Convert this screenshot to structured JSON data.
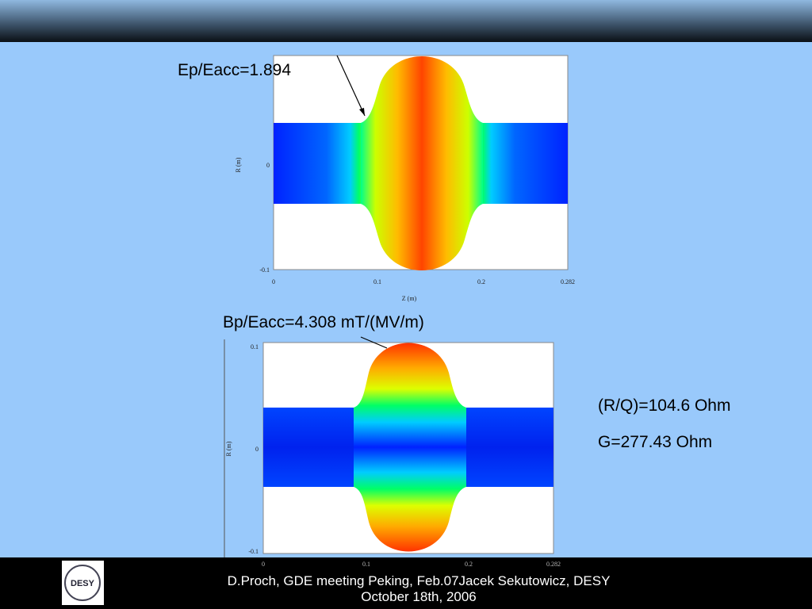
{
  "slide": {
    "annotations": {
      "ep": "Ep/Eacc=1.894",
      "bp": "Bp/Eacc=4.308 mT/(MV/m)",
      "rq": "(R/Q)=104.6 Ohm",
      "g": "G=277.43 Ohm"
    },
    "plots": [
      {
        "y_label": "R (m)",
        "x_label": "Z (m)",
        "y_ticks": [
          "0",
          "-0.1"
        ],
        "x_ticks": [
          "0",
          "0.1",
          "0.2",
          "0.282"
        ]
      },
      {
        "y_label": "R (m)",
        "y_ticks": [
          "0.1",
          "0",
          "-0.1"
        ],
        "x_ticks": [
          "0",
          "0.1",
          "0.2",
          "0.282"
        ]
      }
    ],
    "footer": {
      "line1": "D.Proch, GDE meeting Peking, Feb.07Jacek Sekutowicz, DESY",
      "line2": "October 18th, 2006",
      "logo": "DESY"
    }
  }
}
